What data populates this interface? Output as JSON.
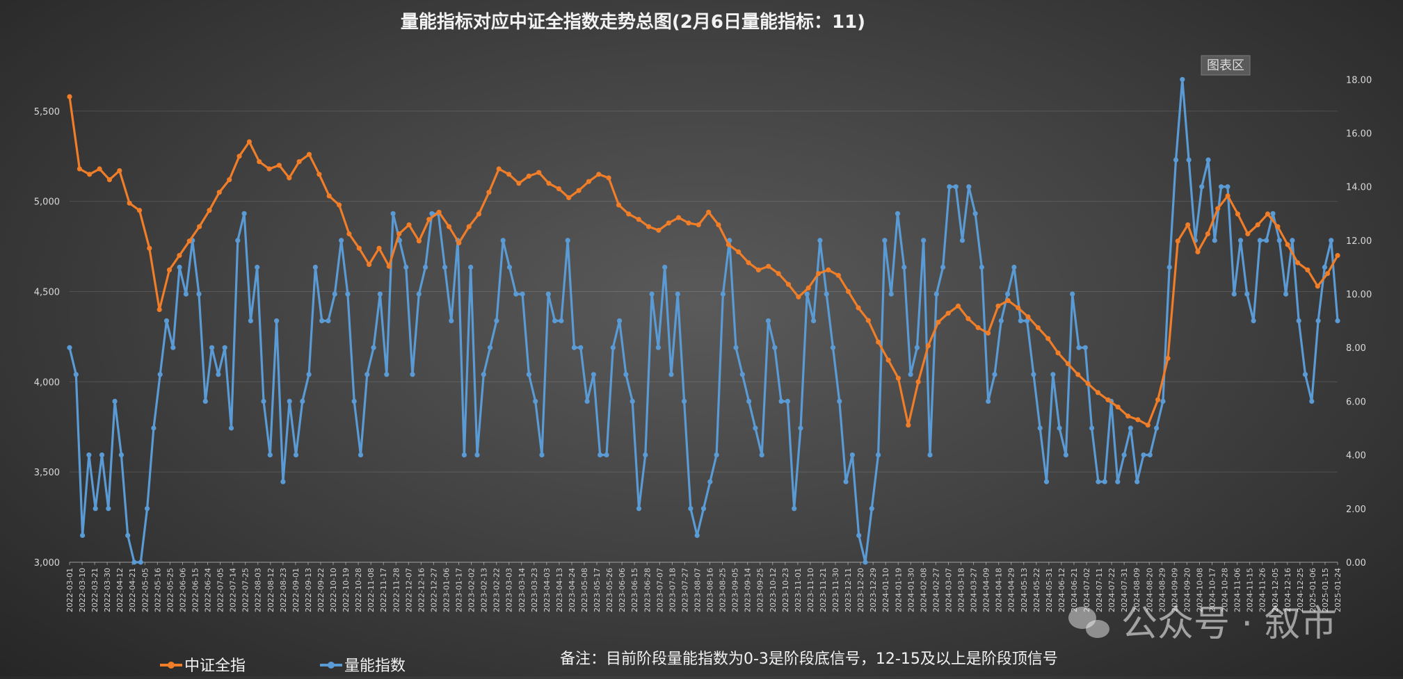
{
  "chart_data": {
    "type": "line",
    "title": "量能指标对应中证全指数走势总图(2月6日量能指标：11)",
    "chart_area_label": "图表区",
    "note": "备注：目前阶段量能指数为0-3是阶段底信号，12-15及以上是阶段顶信号",
    "watermark": "公众号 · 叙市",
    "legend_position": "bottom-left",
    "grid": true,
    "x_tick_labels": [
      "2022-03-01",
      "2022-03-10",
      "2022-03-21",
      "2022-03-30",
      "2022-04-12",
      "2022-04-21",
      "2022-05-05",
      "2022-05-16",
      "2022-05-25",
      "2022-06-06",
      "2022-06-15",
      "2022-06-24",
      "2022-07-05",
      "2022-07-14",
      "2022-07-25",
      "2022-08-03",
      "2022-08-12",
      "2022-08-23",
      "2022-09-01",
      "2022-09-13",
      "2022-09-22",
      "2022-10-10",
      "2022-10-19",
      "2022-10-28",
      "2022-11-08",
      "2022-11-17",
      "2022-11-28",
      "2022-12-07",
      "2022-12-16",
      "2022-12-27",
      "2023-01-06",
      "2023-01-17",
      "2023-02-02",
      "2023-02-13",
      "2023-02-22",
      "2023-03-03",
      "2023-03-14",
      "2023-03-23",
      "2023-04-03",
      "2023-04-13",
      "2023-04-24",
      "2023-05-08",
      "2023-05-17",
      "2023-05-26",
      "2023-06-06",
      "2023-06-15",
      "2023-06-28",
      "2023-07-07",
      "2023-07-18",
      "2023-07-27",
      "2023-08-07",
      "2023-08-16",
      "2023-08-25",
      "2023-09-05",
      "2023-09-14",
      "2023-09-25",
      "2023-10-12",
      "2023-10-23",
      "2023-11-01",
      "2023-11-10",
      "2023-11-21",
      "2023-11-30",
      "2023-12-11",
      "2023-12-20",
      "2023-12-29",
      "2024-01-10",
      "2024-01-19",
      "2024-01-30",
      "2024-02-08",
      "2024-02-27",
      "2024-03-07",
      "2024-03-18",
      "2024-03-27",
      "2024-04-09",
      "2024-04-18",
      "2024-04-29",
      "2024-05-13",
      "2024-05-22",
      "2024-05-31",
      "2024-06-12",
      "2024-06-21",
      "2024-07-02",
      "2024-07-11",
      "2024-07-22",
      "2024-07-31",
      "2024-08-09",
      "2024-08-20",
      "2024-08-29",
      "2024-09-09",
      "2024-09-20",
      "2024-10-08",
      "2024-10-17",
      "2024-10-28",
      "2024-11-06",
      "2024-11-15",
      "2024-11-26",
      "2024-12-05",
      "2024-12-16",
      "2024-12-25",
      "2025-01-06",
      "2025-01-15",
      "2025-01-24"
    ],
    "y_left": {
      "min": 3000,
      "max": 5750,
      "ticks": [
        3000,
        3500,
        4000,
        4500,
        5000,
        5500
      ],
      "tick_labels": [
        "3,000",
        "3,500",
        "4,000",
        "4,500",
        "5,000",
        "5,500"
      ]
    },
    "y_right": {
      "min": 0,
      "max": 18.5,
      "ticks": [
        0,
        2,
        4,
        6,
        8,
        10,
        12,
        14,
        16,
        18
      ],
      "tick_labels": [
        "0.00",
        "2.00",
        "4.00",
        "6.00",
        "8.00",
        "10.00",
        "12.00",
        "14.00",
        "16.00",
        "18.00"
      ]
    },
    "series": [
      {
        "name": "中证全指",
        "axis": "left",
        "color": "#f07d28",
        "values": [
          5580,
          5180,
          5150,
          5180,
          5120,
          5170,
          4990,
          4950,
          4740,
          4400,
          4620,
          4700,
          4780,
          4860,
          4950,
          5050,
          5120,
          5250,
          5330,
          5220,
          5180,
          5200,
          5130,
          5220,
          5260,
          5150,
          5030,
          4980,
          4820,
          4740,
          4650,
          4740,
          4640,
          4820,
          4870,
          4780,
          4900,
          4940,
          4860,
          4770,
          4860,
          4930,
          5050,
          5180,
          5150,
          5100,
          5140,
          5160,
          5100,
          5070,
          5020,
          5060,
          5110,
          5150,
          5130,
          4980,
          4930,
          4900,
          4860,
          4840,
          4880,
          4910,
          4880,
          4870,
          4940,
          4870,
          4760,
          4720,
          4660,
          4620,
          4640,
          4600,
          4540,
          4470,
          4520,
          4600,
          4620,
          4590,
          4500,
          4410,
          4340,
          4220,
          4120,
          4020,
          3760,
          4000,
          4200,
          4330,
          4380,
          4420,
          4350,
          4300,
          4270,
          4420,
          4450,
          4410,
          4360,
          4300,
          4240,
          4160,
          4100,
          4040,
          3990,
          3940,
          3900,
          3860,
          3810,
          3790,
          3760,
          3900,
          4130,
          4780,
          4870,
          4720,
          4820,
          4960,
          5030,
          4930,
          4820,
          4870,
          4930,
          4860,
          4760,
          4660,
          4620,
          4530,
          4600,
          4700
        ]
      },
      {
        "name": "量能指数",
        "axis": "right",
        "color": "#5b9bd5",
        "values": [
          8,
          7,
          1,
          4,
          2,
          4,
          2,
          6,
          4,
          1,
          0,
          0,
          2,
          5,
          7,
          9,
          8,
          11,
          10,
          12,
          10,
          6,
          8,
          7,
          8,
          5,
          12,
          13,
          9,
          11,
          6,
          4,
          9,
          3,
          6,
          4,
          6,
          7,
          11,
          9,
          9,
          10,
          12,
          10,
          6,
          4,
          7,
          8,
          10,
          7,
          13,
          12,
          11,
          7,
          10,
          11,
          13,
          13,
          11,
          9,
          12,
          4,
          11,
          4,
          7,
          8,
          9,
          12,
          11,
          10,
          10,
          7,
          6,
          4,
          10,
          9,
          9,
          12,
          8,
          8,
          6,
          7,
          4,
          4,
          8,
          9,
          7,
          6,
          2,
          4,
          10,
          8,
          11,
          7,
          10,
          6,
          2,
          1,
          2,
          3,
          4,
          10,
          12,
          8,
          7,
          6,
          5,
          4,
          9,
          8,
          6,
          6,
          2,
          5,
          10,
          9,
          12,
          10,
          8,
          6,
          3,
          4,
          1,
          0,
          2,
          4,
          12,
          10,
          13,
          11,
          7,
          8,
          12,
          4,
          10,
          11,
          14,
          14,
          12,
          14,
          13,
          11,
          6,
          7,
          9,
          10,
          11,
          9,
          9,
          7,
          5,
          3,
          7,
          5,
          4,
          10,
          8,
          8,
          5,
          3,
          3,
          6,
          3,
          4,
          5,
          3,
          4,
          4,
          5,
          6,
          11,
          15,
          18,
          15,
          12,
          14,
          15,
          12,
          14,
          14,
          10,
          12,
          10,
          9,
          12,
          12,
          13,
          12,
          10,
          12,
          9,
          7,
          6,
          9,
          11,
          12,
          9
        ]
      }
    ]
  }
}
